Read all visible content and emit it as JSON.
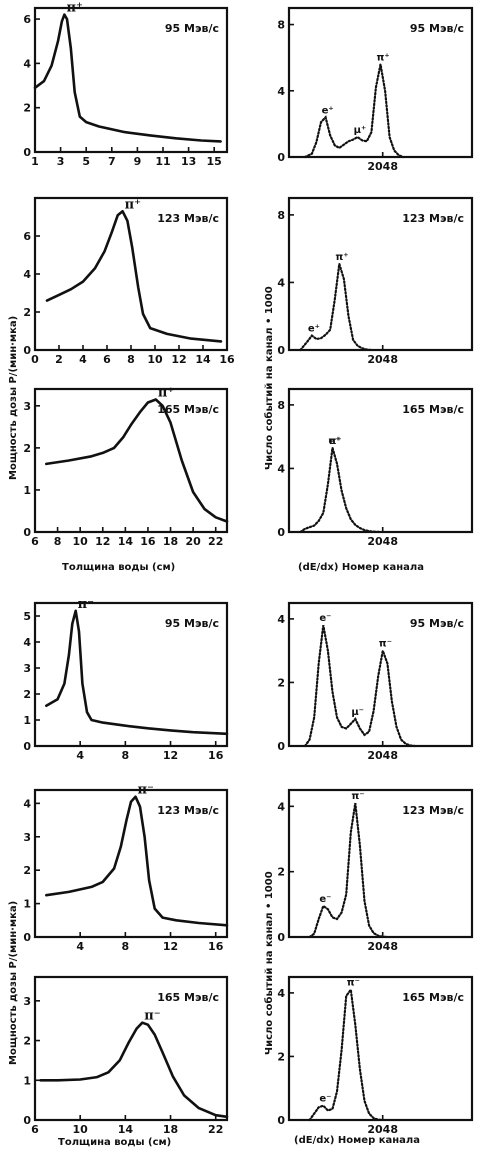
{
  "labels": {
    "ylabel_left_1": "Мощность   дозы   Р/(мин·мка)",
    "ylabel_right_1": "Число   событий  на  канал  • 1000",
    "xlabel_left_1": "Толщина   воды  (см)",
    "xlabel_right_1": "(dE/dx) Номер   канала",
    "ylabel_left_2": "Мощность   дозы   Р/(мин·мка)",
    "ylabel_right_2": "Число   событий  на  канал  • 1000",
    "xlabel_left_2": "Толщина   воды  (см)",
    "xlabel_right_2": "(dE/dx) Номер   канала"
  },
  "chart_data": [
    {
      "id": "L1",
      "type": "line",
      "annotation": "95 Мэв/с",
      "peak_label": "π⁺",
      "xlim": [
        1,
        16
      ],
      "ylim": [
        0,
        6.5
      ],
      "xticks": [
        "1",
        "3",
        "5",
        "7",
        "9",
        "11",
        "13",
        "15"
      ],
      "xtick_vals": [
        1,
        3,
        5,
        7,
        9,
        11,
        13,
        15
      ],
      "yticks": [
        "0",
        "2",
        "4",
        "6"
      ],
      "ytick_vals": [
        0,
        2,
        4,
        6
      ],
      "x": [
        1,
        1.7,
        2.3,
        2.8,
        3.1,
        3.3,
        3.5,
        3.8,
        4.1,
        4.5,
        5,
        6,
        8,
        10,
        12,
        14,
        15.5
      ],
      "y": [
        2.9,
        3.2,
        3.9,
        5.0,
        5.9,
        6.2,
        6.0,
        4.7,
        2.7,
        1.6,
        1.35,
        1.15,
        0.9,
        0.75,
        0.62,
        0.52,
        0.48
      ]
    },
    {
      "id": "R1",
      "type": "line",
      "annotation": "95 Мэв/с",
      "markers": [
        "e⁺",
        "μ⁺",
        "π⁺"
      ],
      "xlim": [
        0,
        4000
      ],
      "ylim": [
        0,
        9
      ],
      "xticks": [
        "2048"
      ],
      "xtick_vals": [
        2048
      ],
      "yticks": [
        "0",
        "4",
        "8"
      ],
      "ytick_vals": [
        0,
        4,
        8
      ],
      "x": [
        350,
        500,
        600,
        700,
        800,
        900,
        1000,
        1100,
        1200,
        1300,
        1400,
        1500,
        1600,
        1700,
        1800,
        1900,
        2000,
        2100,
        2200,
        2300,
        2400,
        2500
      ],
      "y": [
        0,
        0.2,
        0.9,
        2.1,
        2.4,
        1.3,
        0.7,
        0.55,
        0.75,
        0.95,
        1.05,
        1.2,
        1.0,
        0.95,
        1.5,
        4.2,
        5.6,
        4.0,
        1.2,
        0.4,
        0.1,
        0
      ]
    },
    {
      "id": "L2",
      "type": "line",
      "annotation": "123 Мэв/с",
      "peak_label": "π⁺",
      "xlim": [
        0,
        16
      ],
      "ylim": [
        0,
        8
      ],
      "xticks": [
        "0",
        "2",
        "4",
        "6",
        "8",
        "10",
        "12",
        "14",
        "16"
      ],
      "xtick_vals": [
        0,
        2,
        4,
        6,
        8,
        10,
        12,
        14,
        16
      ],
      "yticks": [
        "0",
        "2",
        "4",
        "6"
      ],
      "ytick_vals": [
        0,
        2,
        4,
        6
      ],
      "x": [
        1,
        2,
        3,
        4,
        5,
        5.8,
        6.4,
        6.9,
        7.3,
        7.7,
        8.1,
        8.6,
        9,
        9.6,
        11,
        13,
        15.5
      ],
      "y": [
        2.6,
        2.9,
        3.2,
        3.6,
        4.3,
        5.2,
        6.2,
        7.1,
        7.3,
        6.8,
        5.4,
        3.3,
        1.9,
        1.15,
        0.85,
        0.6,
        0.45
      ]
    },
    {
      "id": "R2",
      "type": "line",
      "annotation": "123 Мэв/с",
      "markers": [
        "e⁺",
        "π⁺"
      ],
      "xlim": [
        0,
        4000
      ],
      "ylim": [
        0,
        9
      ],
      "xticks": [
        "2048"
      ],
      "xtick_vals": [
        2048
      ],
      "yticks": [
        "0",
        "4",
        "8"
      ],
      "ytick_vals": [
        0,
        4,
        8
      ],
      "x": [
        250,
        400,
        500,
        600,
        700,
        800,
        900,
        1000,
        1100,
        1200,
        1300,
        1400,
        1500,
        1600,
        1700,
        1800
      ],
      "y": [
        0,
        0.5,
        0.85,
        0.65,
        0.7,
        0.9,
        1.2,
        3.0,
        5.1,
        4.2,
        2.0,
        0.6,
        0.25,
        0.1,
        0.03,
        0
      ]
    },
    {
      "id": "L3",
      "type": "line",
      "annotation": "165 Мэв/с",
      "peak_label": "π⁺",
      "xlim": [
        6,
        23
      ],
      "ylim": [
        0,
        3.4
      ],
      "xticks": [
        "6",
        "8",
        "10",
        "12",
        "14",
        "16",
        "18",
        "20",
        "22"
      ],
      "xtick_vals": [
        6,
        8,
        10,
        12,
        14,
        16,
        18,
        20,
        22
      ],
      "yticks": [
        "0",
        "1",
        "2",
        "3"
      ],
      "ytick_vals": [
        0,
        1,
        2,
        3
      ],
      "x": [
        7,
        9,
        11,
        12,
        13,
        13.8,
        14.5,
        15.3,
        16,
        16.7,
        17.3,
        18,
        19,
        20,
        21,
        22,
        23
      ],
      "y": [
        1.62,
        1.7,
        1.8,
        1.88,
        2.0,
        2.25,
        2.55,
        2.85,
        3.08,
        3.15,
        3.0,
        2.6,
        1.7,
        0.95,
        0.55,
        0.35,
        0.25
      ]
    },
    {
      "id": "R3",
      "type": "line",
      "annotation": "165 Мэв/с",
      "markers": [
        "e⁺",
        "π⁺"
      ],
      "xlim": [
        0,
        4000
      ],
      "ylim": [
        0,
        9
      ],
      "xticks": [
        "2048"
      ],
      "xtick_vals": [
        2048
      ],
      "yticks": [
        "0",
        "4",
        "8"
      ],
      "ytick_vals": [
        0,
        4,
        8
      ],
      "x": [
        250,
        350,
        450,
        550,
        650,
        750,
        850,
        950,
        1050,
        1150,
        1250,
        1350,
        1450,
        1550,
        1650,
        1800,
        2000
      ],
      "y": [
        0,
        0.2,
        0.3,
        0.4,
        0.7,
        1.2,
        3.0,
        5.3,
        4.3,
        2.6,
        1.5,
        0.8,
        0.45,
        0.25,
        0.12,
        0.03,
        0
      ]
    },
    {
      "id": "L4",
      "type": "line",
      "annotation": "95 Мэв/с",
      "peak_label": "π⁻",
      "xlim": [
        0,
        17
      ],
      "ylim": [
        0,
        5.5
      ],
      "xticks": [
        "4",
        "8",
        "12",
        "16"
      ],
      "xtick_vals": [
        4,
        8,
        12,
        16
      ],
      "yticks": [
        "0",
        "1",
        "2",
        "3",
        "4",
        "5"
      ],
      "ytick_vals": [
        0,
        1,
        2,
        3,
        4,
        5
      ],
      "x": [
        1,
        2,
        2.6,
        3,
        3.3,
        3.6,
        3.9,
        4.2,
        4.6,
        5,
        6,
        8,
        10,
        12,
        14,
        17
      ],
      "y": [
        1.55,
        1.8,
        2.4,
        3.5,
        4.7,
        5.2,
        4.4,
        2.4,
        1.3,
        1.0,
        0.9,
        0.78,
        0.68,
        0.6,
        0.53,
        0.47
      ]
    },
    {
      "id": "R4",
      "type": "line",
      "annotation": "95 Мэв/с",
      "markers": [
        "e⁻",
        "μ⁻",
        "π⁻"
      ],
      "xlim": [
        0,
        4000
      ],
      "ylim": [
        0,
        4.5
      ],
      "xticks": [
        "2048"
      ],
      "xtick_vals": [
        2048
      ],
      "yticks": [
        "0",
        "2",
        "4"
      ],
      "ytick_vals": [
        0,
        2,
        4
      ],
      "x": [
        350,
        450,
        550,
        650,
        750,
        850,
        950,
        1050,
        1150,
        1250,
        1350,
        1450,
        1550,
        1650,
        1750,
        1850,
        1950,
        2050,
        2150,
        2250,
        2350,
        2450,
        2550,
        2650,
        2750
      ],
      "y": [
        0,
        0.2,
        0.9,
        2.6,
        3.8,
        3.0,
        1.7,
        0.9,
        0.6,
        0.55,
        0.7,
        0.85,
        0.55,
        0.35,
        0.45,
        1.1,
        2.2,
        3.0,
        2.6,
        1.4,
        0.6,
        0.2,
        0.07,
        0.02,
        0
      ]
    },
    {
      "id": "L5",
      "type": "line",
      "annotation": "123 Мэв/с",
      "peak_label": "π⁻",
      "xlim": [
        0,
        17
      ],
      "ylim": [
        0,
        4.4
      ],
      "xticks": [
        "4",
        "8",
        "12",
        "16"
      ],
      "xtick_vals": [
        4,
        8,
        12,
        16
      ],
      "yticks": [
        "0",
        "1",
        "2",
        "3",
        "4"
      ],
      "ytick_vals": [
        0,
        1,
        2,
        3,
        4
      ],
      "x": [
        1,
        3,
        5,
        6,
        7,
        7.6,
        8.1,
        8.5,
        8.9,
        9.3,
        9.7,
        10.1,
        10.6,
        11.3,
        12.5,
        14.5,
        17
      ],
      "y": [
        1.25,
        1.35,
        1.5,
        1.65,
        2.05,
        2.7,
        3.5,
        4.05,
        4.2,
        3.9,
        3.0,
        1.7,
        0.85,
        0.58,
        0.5,
        0.42,
        0.35
      ]
    },
    {
      "id": "R5",
      "type": "line",
      "annotation": "123 Мэв/с",
      "markers": [
        "e⁻",
        "π⁻"
      ],
      "xlim": [
        0,
        4000
      ],
      "ylim": [
        0,
        4.5
      ],
      "xticks": [
        "2048"
      ],
      "xtick_vals": [
        2048
      ],
      "yticks": [
        "0",
        "2",
        "4"
      ],
      "ytick_vals": [
        0,
        2,
        4
      ],
      "x": [
        450,
        550,
        650,
        750,
        850,
        950,
        1050,
        1150,
        1250,
        1350,
        1450,
        1550,
        1650,
        1750,
        1850,
        1950,
        2050,
        2150
      ],
      "y": [
        0,
        0.1,
        0.55,
        0.95,
        0.85,
        0.6,
        0.55,
        0.75,
        1.3,
        3.2,
        4.1,
        2.8,
        1.1,
        0.35,
        0.12,
        0.04,
        0.01,
        0
      ]
    },
    {
      "id": "L6",
      "type": "line",
      "annotation": "165 Мэв/с",
      "peak_label": "π⁻",
      "xlim": [
        6,
        23
      ],
      "ylim": [
        0,
        3.6
      ],
      "xticks": [
        "6",
        "10",
        "14",
        "18",
        "22"
      ],
      "xtick_vals": [
        6,
        10,
        14,
        18,
        22
      ],
      "yticks": [
        "0",
        "1",
        "2",
        "3"
      ],
      "ytick_vals": [
        0,
        1,
        2,
        3
      ],
      "x": [
        6.5,
        8,
        10,
        11.5,
        12.5,
        13.5,
        14.3,
        15,
        15.5,
        16,
        16.6,
        17.3,
        18.2,
        19.2,
        20.5,
        22,
        23
      ],
      "y": [
        1.0,
        1.0,
        1.02,
        1.08,
        1.2,
        1.5,
        1.95,
        2.3,
        2.45,
        2.4,
        2.15,
        1.7,
        1.1,
        0.62,
        0.3,
        0.12,
        0.08
      ]
    },
    {
      "id": "R6",
      "type": "line",
      "annotation": "165 Мэв/с",
      "markers": [
        "e⁻",
        "π⁻"
      ],
      "xlim": [
        0,
        4000
      ],
      "ylim": [
        0,
        4.5
      ],
      "xticks": [
        "2048"
      ],
      "xtick_vals": [
        2048
      ],
      "yticks": [
        "0",
        "2",
        "4"
      ],
      "ytick_vals": [
        0,
        2,
        4
      ],
      "x": [
        450,
        550,
        650,
        750,
        850,
        950,
        1050,
        1150,
        1250,
        1350,
        1450,
        1550,
        1650,
        1750,
        1850,
        1950,
        2050
      ],
      "y": [
        0,
        0.2,
        0.4,
        0.45,
        0.3,
        0.35,
        0.9,
        2.2,
        3.9,
        4.1,
        3.0,
        1.6,
        0.6,
        0.2,
        0.06,
        0.01,
        0
      ]
    }
  ]
}
